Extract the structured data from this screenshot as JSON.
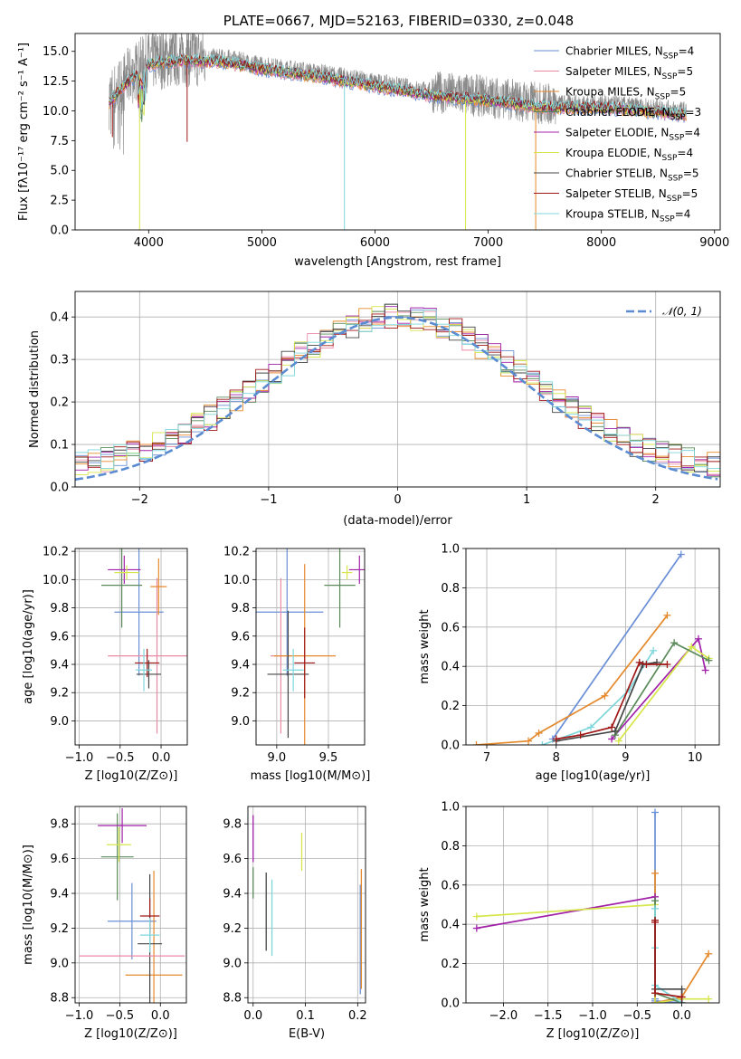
{
  "figure_title": "PLATE=0667, MJD=52163, FIBERID=0330, z=0.048",
  "colors": {
    "chabrier_miles": "#6a8fd6",
    "salpeter_miles": "#e98aa5",
    "kroupa_miles": "#e58a2c",
    "chabrier_elodie": "#5a8a5a",
    "salpeter_elodie": "#a020a8",
    "kroupa_elodie": "#d6e64a",
    "chabrier_stelib": "#444444",
    "salpeter_stelib": "#a01818",
    "kroupa_stelib": "#7fd7dc",
    "grid": "#b0b0b0",
    "gauss": "#5b8bd0"
  },
  "chart_data": [
    {
      "id": "spectrum",
      "type": "line",
      "title": "PLATE=0667, MJD=52163, FIBERID=0330, z=0.048",
      "xlabel": "wavelength [Angstrom, rest frame]",
      "ylabel": "Flux [fλ10⁻¹⁷ erg cm⁻² s⁻¹ A⁻¹]",
      "xlim": [
        3350,
        9050
      ],
      "ylim": [
        0,
        16.5
      ],
      "xticks": [
        4000,
        5000,
        6000,
        7000,
        8000,
        9000
      ],
      "yticks": [
        0.0,
        2.5,
        5.0,
        7.5,
        10.0,
        12.5,
        15.0
      ],
      "legend_position": "upper-right",
      "continuum": [
        [
          3650,
          11.0
        ],
        [
          3800,
          12.6
        ],
        [
          4000,
          14.2
        ],
        [
          4300,
          14.6
        ],
        [
          4700,
          14.4
        ],
        [
          5000,
          13.8
        ],
        [
          5500,
          13.2
        ],
        [
          6000,
          12.4
        ],
        [
          6500,
          11.6
        ],
        [
          7000,
          11.2
        ],
        [
          7500,
          10.6
        ],
        [
          8000,
          10.6
        ],
        [
          8500,
          10.2
        ],
        [
          8750,
          10.0
        ]
      ],
      "legend": [
        "Chabrier MILES, N_SSP=4",
        "Salpeter MILES, N_SSP=5",
        "Kroupa MILES, N_SSP=5",
        "Chabrier ELODIE, N_SSP=3",
        "Salpeter ELODIE, N_SSP=4",
        "Kroupa ELODIE, N_SSP=4",
        "Chabrier STELIB, N_SSP=5",
        "Salpeter STELIB, N_SSP=5",
        "Kroupa STELIB, N_SSP=4"
      ],
      "legend_colors": [
        "#6a8fd6",
        "#e98aa5",
        "#e58a2c",
        "#5a8a5a",
        "#a020a8",
        "#d6e64a",
        "#444444",
        "#a01818",
        "#7fd7dc"
      ]
    },
    {
      "id": "residuals",
      "type": "bar",
      "xlabel": "(data-model)/error",
      "ylabel": "Normed distribution",
      "xlim": [
        -2.5,
        2.5
      ],
      "ylim": [
        0,
        0.46
      ],
      "xticks": [
        -2,
        -1,
        0,
        1,
        2
      ],
      "xtick_labels": [
        "−2",
        "−1",
        "0",
        "1",
        "2"
      ],
      "yticks": [
        0.0,
        0.1,
        0.2,
        0.3,
        0.4
      ],
      "bin_width": 0.1,
      "legend": [
        "𝒩(0, 1)"
      ]
    },
    {
      "id": "age_vs_Z",
      "type": "scatter",
      "xlabel": "Z [log10(Z/Z⊙)]",
      "ylabel": "age  [log10(age/yr)]",
      "xlim": [
        -1.05,
        0.32
      ],
      "ylim": [
        8.83,
        10.22
      ],
      "xticks": [
        -1.0,
        -0.5,
        0.0
      ],
      "xtick_labels": [
        "−1.0",
        "−0.5",
        "0.0"
      ],
      "yticks": [
        9.0,
        9.2,
        9.4,
        9.6,
        9.8,
        10.0,
        10.2
      ],
      "points": [
        {
          "x": -0.27,
          "y": 9.77,
          "xerr": 0.3,
          "yerr": 0.45
        },
        {
          "x": -0.05,
          "y": 9.46,
          "xerr": 0.6,
          "yerr": 0.55
        },
        {
          "x": -0.03,
          "y": 9.95,
          "xerr": 0.1,
          "yerr": 0.2
        },
        {
          "x": -0.48,
          "y": 9.96,
          "xerr": 0.25,
          "yerr": 0.3
        },
        {
          "x": -0.45,
          "y": 10.07,
          "xerr": 0.2,
          "yerr": 0.1
        },
        {
          "x": -0.42,
          "y": 10.05,
          "xerr": 0.15,
          "yerr": 0.05
        },
        {
          "x": -0.15,
          "y": 9.33,
          "xerr": 0.15,
          "yerr": 0.1
        },
        {
          "x": -0.17,
          "y": 9.41,
          "xerr": 0.15,
          "yerr": 0.1
        },
        {
          "x": -0.21,
          "y": 9.36,
          "xerr": 0.1,
          "yerr": 0.15
        }
      ]
    },
    {
      "id": "age_vs_mass",
      "type": "scatter",
      "xlabel": "mass [log10(M/M⊙)]",
      "ylabel": "",
      "xlim": [
        8.8,
        9.85
      ],
      "ylim": [
        8.83,
        10.22
      ],
      "xticks": [
        9.0,
        9.5
      ],
      "xtick_labels": [
        "9.0",
        "9.5"
      ],
      "yticks": [
        9.0,
        9.2,
        9.4,
        9.6,
        9.8,
        10.0,
        10.2
      ],
      "points": [
        {
          "x": 9.1,
          "y": 9.77,
          "xerr": 0.35,
          "yerr": 0.45
        },
        {
          "x": 9.04,
          "y": 9.46,
          "xerr": 0.1,
          "yerr": 0.55
        },
        {
          "x": 9.27,
          "y": 9.46,
          "xerr": 0.3,
          "yerr": 0.65
        },
        {
          "x": 9.61,
          "y": 9.96,
          "xerr": 0.15,
          "yerr": 0.3
        },
        {
          "x": 9.8,
          "y": 10.07,
          "xerr": 0.1,
          "yerr": 0.1
        },
        {
          "x": 9.68,
          "y": 10.05,
          "xerr": 0.05,
          "yerr": 0.05
        },
        {
          "x": 9.11,
          "y": 9.33,
          "xerr": 0.2,
          "yerr": 0.45
        },
        {
          "x": 9.27,
          "y": 9.41,
          "xerr": 0.1,
          "yerr": 0.25
        },
        {
          "x": 9.16,
          "y": 9.36,
          "xerr": 0.1,
          "yerr": 0.15
        }
      ]
    },
    {
      "id": "massweight_vs_age",
      "type": "line",
      "xlabel": "age  [log10(age/yr)]",
      "ylabel": "mass weight",
      "xlim": [
        6.7,
        10.35
      ],
      "ylim": [
        0,
        1.0
      ],
      "xticks": [
        7,
        8,
        9,
        10
      ],
      "yticks": [
        0.0,
        0.2,
        0.4,
        0.6,
        0.8,
        1.0
      ],
      "series": [
        {
          "color": "#6a8fd6",
          "x": [
            7.95,
            9.8
          ],
          "y": [
            0.03,
            0.97
          ]
        },
        {
          "color": "#e58a2c",
          "x": [
            6.85,
            7.6,
            7.75,
            8.7,
            9.6
          ],
          "y": [
            0.0,
            0.02,
            0.06,
            0.25,
            0.66
          ]
        },
        {
          "color": "#a020a8",
          "x": [
            8.8,
            10.05,
            10.15
          ],
          "y": [
            0.03,
            0.54,
            0.38
          ]
        },
        {
          "color": "#d6e64a",
          "x": [
            8.9,
            9.95,
            10.2
          ],
          "y": [
            0.02,
            0.5,
            0.44
          ]
        },
        {
          "color": "#5a8a5a",
          "x": [
            8.85,
            9.7,
            10.2
          ],
          "y": [
            0.05,
            0.52,
            0.43
          ]
        },
        {
          "color": "#7fd7dc",
          "x": [
            7.8,
            8.5,
            9.05,
            9.4
          ],
          "y": [
            0.0,
            0.09,
            0.28,
            0.48
          ]
        },
        {
          "color": "#444444",
          "x": [
            8.0,
            8.85,
            9.25,
            9.45
          ],
          "y": [
            0.02,
            0.07,
            0.41,
            0.42
          ]
        },
        {
          "color": "#a01818",
          "x": [
            8.0,
            8.35,
            8.8,
            9.2,
            9.3,
            9.6
          ],
          "y": [
            0.03,
            0.05,
            0.09,
            0.42,
            0.41,
            0.41
          ]
        }
      ]
    },
    {
      "id": "mass_vs_Z",
      "type": "scatter",
      "xlabel": "Z [log10(Z/Z⊙)]",
      "ylabel": "mass [log10(M/M⊙)]",
      "xlim": [
        -1.05,
        0.32
      ],
      "ylim": [
        8.77,
        9.9
      ],
      "xticks": [
        -1.0,
        -0.5,
        0.0
      ],
      "xtick_labels": [
        "−1.0",
        "−0.5",
        "0.0"
      ],
      "yticks": [
        8.8,
        9.0,
        9.2,
        9.4,
        9.6,
        9.8
      ],
      "points": [
        {
          "x": -0.35,
          "y": 9.24,
          "xerr": 0.3,
          "yerr": 0.22
        },
        {
          "x": -0.05,
          "y": 9.04,
          "xerr": 0.0,
          "yerr": 0.0
        },
        {
          "x": -0.08,
          "y": 8.93,
          "xerr": 0.35,
          "yerr": 0.6
        },
        {
          "x": -0.53,
          "y": 9.61,
          "xerr": 0.2,
          "yerr": 0.25
        },
        {
          "x": -0.47,
          "y": 9.79,
          "xerr": 0.3,
          "yerr": 0.1
        },
        {
          "x": -0.51,
          "y": 9.68,
          "xerr": 0.15,
          "yerr": 0.1
        },
        {
          "x": -0.13,
          "y": 9.11,
          "xerr": 0.15,
          "yerr": 0.4
        },
        {
          "x": -0.13,
          "y": 9.27,
          "xerr": 0.12,
          "yerr": 0.1
        },
        {
          "x": -0.13,
          "y": 9.16,
          "xerr": 0.12,
          "yerr": 0.1
        }
      ],
      "hline": {
        "y": 9.04,
        "x1": -1.0,
        "x2": 0.3,
        "color": "#e98aa5"
      }
    },
    {
      "id": "mass_vs_ebv",
      "type": "scatter",
      "xlabel": "E(B-V)",
      "ylabel": "",
      "xlim": [
        -0.01,
        0.215
      ],
      "ylim": [
        8.77,
        9.9
      ],
      "xticks": [
        0.0,
        0.1,
        0.2
      ],
      "xtick_labels": [
        "0.0",
        "0.1",
        "0.2"
      ],
      "yticks": [
        8.8,
        9.0,
        9.2,
        9.4,
        9.6,
        9.8
      ],
      "vbars": [
        {
          "x": 0.0,
          "y1": 9.58,
          "y2": 9.85,
          "color": "#a020a8"
        },
        {
          "x": 0.0,
          "y1": 9.37,
          "y2": 9.55,
          "color": "#5a8a5a"
        },
        {
          "x": 0.025,
          "y1": 9.07,
          "y2": 9.52,
          "color": "#444444"
        },
        {
          "x": 0.036,
          "y1": 9.04,
          "y2": 9.48,
          "color": "#7fd7dc"
        },
        {
          "x": 0.093,
          "y1": 9.53,
          "y2": 9.75,
          "color": "#d6e64a"
        },
        {
          "x": 0.205,
          "y1": 8.82,
          "y2": 9.45,
          "color": "#6a8fd6"
        },
        {
          "x": 0.207,
          "y1": 8.85,
          "y2": 9.54,
          "color": "#e58a2c"
        }
      ]
    },
    {
      "id": "massweight_vs_Z",
      "type": "line",
      "xlabel": "Z [log10(Z/Z⊙)]",
      "ylabel": "mass weight",
      "xlim": [
        -2.42,
        0.42
      ],
      "ylim": [
        0,
        1.0
      ],
      "xticks": [
        -2.0,
        -1.5,
        -1.0,
        -0.5,
        0.0
      ],
      "xtick_labels": [
        "−2.0",
        "−1.5",
        "−1.0",
        "−0.5",
        "0.0"
      ],
      "yticks": [
        0.0,
        0.2,
        0.4,
        0.6,
        0.8,
        1.0
      ],
      "series": [
        {
          "color": "#6a8fd6",
          "x": [
            -0.3,
            -0.3,
            -0.3,
            0.0
          ],
          "y": [
            0.97,
            0.02,
            0.01,
            0.0
          ]
        },
        {
          "color": "#e58a2c",
          "x": [
            -0.3,
            -0.3,
            0.0,
            0.3
          ],
          "y": [
            0.66,
            0.0,
            0.03,
            0.25
          ]
        },
        {
          "color": "#a020a8",
          "x": [
            -2.3,
            -0.3,
            -0.3,
            0.0
          ],
          "y": [
            0.38,
            0.54,
            0.0,
            0.02
          ]
        },
        {
          "color": "#d6e64a",
          "x": [
            -2.3,
            -0.3,
            -0.3,
            0.0,
            0.3
          ],
          "y": [
            0.44,
            0.5,
            0.0,
            0.02,
            0.02
          ]
        },
        {
          "color": "#5a8a5a",
          "x": [
            -0.3,
            -0.3,
            0.0
          ],
          "y": [
            0.52,
            0.05,
            0.0
          ]
        },
        {
          "color": "#7fd7dc",
          "x": [
            -0.3,
            -0.3,
            -0.3,
            0.0
          ],
          "y": [
            0.48,
            0.28,
            0.09,
            0.0
          ]
        },
        {
          "color": "#444444",
          "x": [
            -0.3,
            -0.3,
            0.0,
            0.0
          ],
          "y": [
            0.42,
            0.07,
            0.07,
            0.0
          ]
        },
        {
          "color": "#a01818",
          "x": [
            -0.3,
            -0.3,
            -0.3,
            0.0
          ],
          "y": [
            0.42,
            0.41,
            0.05,
            0.03
          ]
        }
      ]
    }
  ]
}
